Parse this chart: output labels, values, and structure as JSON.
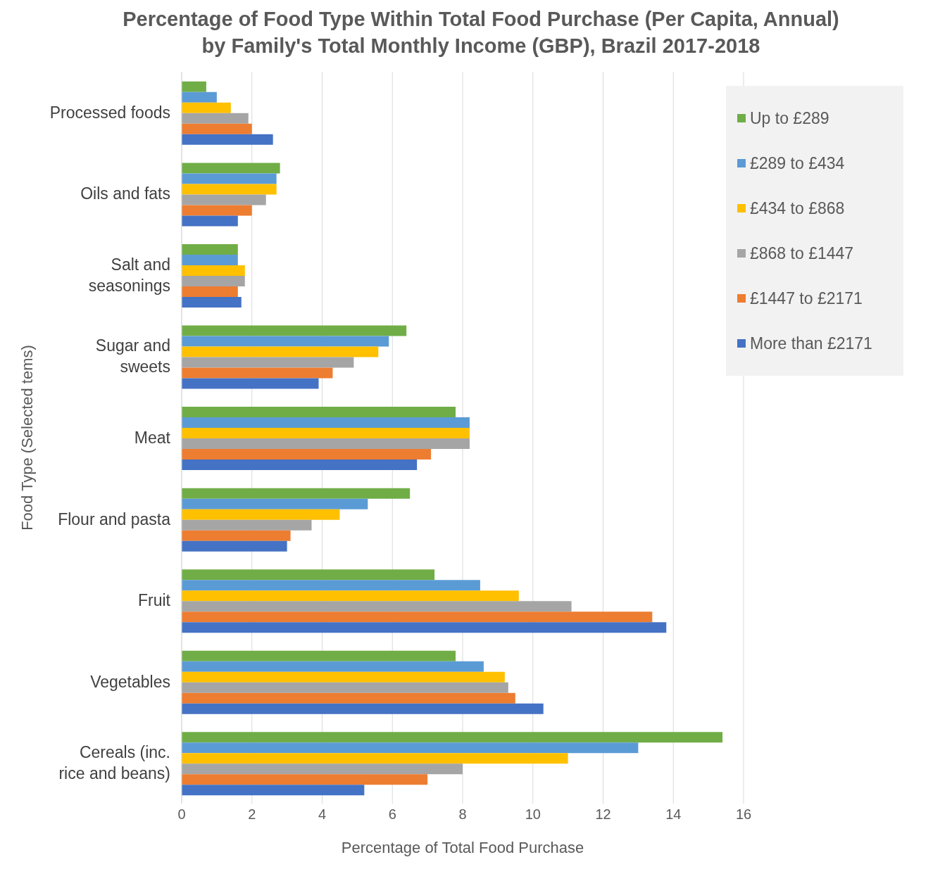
{
  "chart_data": {
    "type": "bar",
    "orientation": "horizontal",
    "title": "Percentage of Food Type Within Total Food Purchase (Per Capita, Annual)\nby Family's Total Monthly Income (GBP), Brazil 2017-2018",
    "xlabel": "Percentage of Total Food Purchase",
    "ylabel": "Food Type (Selected tems)",
    "categories": [
      "Processed foods",
      "Oils and fats",
      "Salt and seasonings",
      "Sugar and sweets",
      "Meat",
      "Flour and pasta",
      "Fruit",
      "Vegetables",
      "Cereals (inc. rice and beans)"
    ],
    "series": [
      {
        "name": "Up to £289",
        "color": "#70ad47",
        "values": [
          0.7,
          2.8,
          1.6,
          6.4,
          7.8,
          6.5,
          7.2,
          7.8,
          15.4
        ]
      },
      {
        "name": "£289 to £434",
        "color": "#5b9bd5",
        "values": [
          1.0,
          2.7,
          1.6,
          5.9,
          8.2,
          5.3,
          8.5,
          8.6,
          13.0
        ]
      },
      {
        "name": "£434 to £868",
        "color": "#ffc000",
        "values": [
          1.4,
          2.7,
          1.8,
          5.6,
          8.2,
          4.5,
          9.6,
          9.2,
          11.0
        ]
      },
      {
        "name": "£868 to £1447",
        "color": "#a5a5a5",
        "values": [
          1.9,
          2.4,
          1.8,
          4.9,
          8.2,
          3.7,
          11.1,
          9.3,
          8.0
        ]
      },
      {
        "name": "£1447 to £2171",
        "color": "#ed7d31",
        "values": [
          2.0,
          2.0,
          1.6,
          4.3,
          7.1,
          3.1,
          13.4,
          9.5,
          7.0
        ]
      },
      {
        "name": "More than £2171",
        "color": "#4472c4",
        "values": [
          2.6,
          1.6,
          1.7,
          3.9,
          6.7,
          3.0,
          13.8,
          10.3,
          5.2
        ]
      }
    ],
    "xlim": [
      0,
      16
    ],
    "xticks": [
      0,
      2,
      4,
      6,
      8,
      10,
      12,
      14,
      16
    ],
    "grid": "x",
    "legend": "top right"
  }
}
